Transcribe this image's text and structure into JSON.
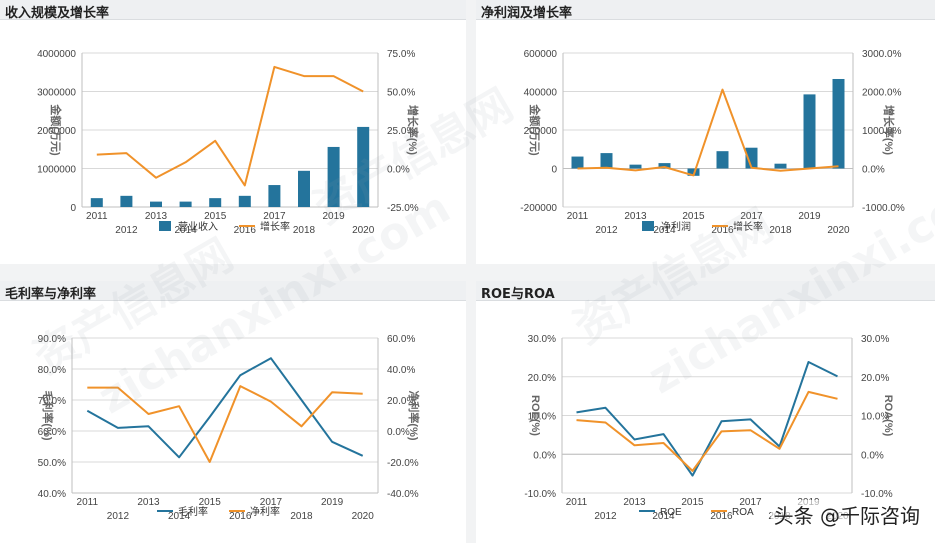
{
  "panels": [
    {
      "title": "收入规模及增长率"
    },
    {
      "title": "净利润及增长率"
    },
    {
      "title": "毛利率与净利率"
    },
    {
      "title": "ROE与ROA"
    }
  ],
  "colors": {
    "blue": "#24749c",
    "orange": "#f0922a",
    "grid": "#d9d9d9",
    "axis_text": "#444444"
  },
  "watermark": {
    "lines": [
      "资产信息网",
      "zichanxinxi.com"
    ]
  },
  "footer_watermark": "头条 @千际咨询",
  "chart_data": [
    {
      "type": "bar+line",
      "title": "收入规模及增长率",
      "categories": [
        "2011",
        "2012",
        "2013",
        "2014",
        "2015",
        "2016",
        "2017",
        "2018",
        "2019",
        "2020"
      ],
      "ylabel": "金额(万元)",
      "y2label": "增长率(%)",
      "ylim": [
        0,
        4000000
      ],
      "yticks": [
        0,
        1000000,
        2000000,
        3000000,
        4000000
      ],
      "ytick_labels": [
        "0",
        "1000000",
        "2000000",
        "3000000",
        "4000000"
      ],
      "y2lim": [
        -25,
        75
      ],
      "y2ticks": [
        -25,
        0,
        25,
        50,
        75
      ],
      "y2tick_labels": [
        "-25.0%",
        "0.0%",
        "25.0%",
        "50.0%",
        "75.0%"
      ],
      "series": [
        {
          "name": "营业收入",
          "kind": "bar",
          "axis": "left",
          "values": [
            230000,
            290000,
            140000,
            140000,
            230000,
            290000,
            570000,
            940000,
            1560000,
            2080000
          ]
        },
        {
          "name": "增长率",
          "kind": "line",
          "axis": "right",
          "values": [
            9,
            10,
            -6,
            4,
            18,
            -11,
            66,
            60,
            60,
            50
          ]
        }
      ],
      "legend": "bottom",
      "grid": true
    },
    {
      "type": "bar+line",
      "title": "净利润及增长率",
      "categories": [
        "2011",
        "2012",
        "2013",
        "2014",
        "2015",
        "2016",
        "2017",
        "2018",
        "2019",
        "2020"
      ],
      "ylabel": "金额(万元)",
      "y2label": "增长率(%)",
      "ylim": [
        -200000,
        600000
      ],
      "yticks": [
        -200000,
        0,
        200000,
        400000,
        600000
      ],
      "ytick_labels": [
        "-200000",
        "0",
        "200000",
        "400000",
        "600000"
      ],
      "y2lim": [
        -1000,
        3000
      ],
      "y2ticks": [
        -1000,
        0,
        1000,
        2000,
        3000
      ],
      "y2tick_labels": [
        "-1000.0%",
        "0.0%",
        "1000.0%",
        "2000.0%",
        "3000.0%"
      ],
      "series": [
        {
          "name": "净利润",
          "kind": "bar",
          "axis": "left",
          "values": [
            62000,
            80000,
            20000,
            28000,
            -38000,
            90000,
            108000,
            25000,
            385000,
            465000
          ]
        },
        {
          "name": "增长率",
          "kind": "line",
          "axis": "right",
          "values": [
            0,
            20,
            -50,
            40,
            -180,
            2050,
            20,
            -60,
            0,
            60
          ]
        }
      ],
      "legend": "bottom",
      "grid": true
    },
    {
      "type": "line",
      "title": "毛利率与净利率",
      "categories": [
        "2011",
        "2012",
        "2013",
        "2014",
        "2015",
        "2016",
        "2017",
        "2018",
        "2019",
        "2020"
      ],
      "ylabel": "毛利率(%)",
      "y2label": "净利率(%)",
      "ylim": [
        40,
        90
      ],
      "yticks": [
        40,
        50,
        60,
        70,
        80,
        90
      ],
      "ytick_labels": [
        "40.0%",
        "50.0%",
        "60.0%",
        "70.0%",
        "80.0%",
        "90.0%"
      ],
      "y2lim": [
        -40,
        60
      ],
      "y2ticks": [
        -40,
        -20,
        0,
        20,
        40,
        60
      ],
      "y2tick_labels": [
        "-40.0%",
        "-20.0%",
        "0.0%",
        "20.0%",
        "40.0%",
        "60.0%"
      ],
      "series": [
        {
          "name": "毛利率",
          "kind": "line",
          "axis": "left",
          "values": [
            66.5,
            61,
            61.5,
            51.5,
            64.5,
            78,
            83.5,
            70,
            56.5,
            52
          ]
        },
        {
          "name": "净利率",
          "kind": "line",
          "axis": "right",
          "values": [
            28,
            28,
            11,
            16,
            -20,
            29,
            19,
            3,
            25,
            24
          ]
        }
      ],
      "legend": "bottom",
      "grid": true
    },
    {
      "type": "line",
      "title": "ROE与ROA",
      "categories": [
        "2011",
        "2012",
        "2013",
        "2014",
        "2015",
        "2016",
        "2017",
        "2018",
        "2019",
        "2020"
      ],
      "ylabel": "ROE(%)",
      "y2label": "ROA(%)",
      "ylim": [
        -10,
        30
      ],
      "yticks": [
        -10,
        0,
        10,
        20,
        30
      ],
      "ytick_labels": [
        "-10.0%",
        "0.0%",
        "10.0%",
        "20.0%",
        "30.0%"
      ],
      "y2lim": [
        -10,
        30
      ],
      "y2ticks": [
        -10,
        0,
        10,
        20,
        30
      ],
      "y2tick_labels": [
        "-10.0%",
        "0.0%",
        "10.0%",
        "20.0%",
        "30.0%"
      ],
      "series": [
        {
          "name": "ROE",
          "kind": "line",
          "axis": "left",
          "values": [
            10.8,
            12,
            3.8,
            5.2,
            -5.5,
            8.5,
            9,
            2,
            23.8,
            20.1
          ]
        },
        {
          "name": "ROA",
          "kind": "line",
          "axis": "right",
          "values": [
            8.8,
            8.2,
            2.3,
            2.9,
            -4.3,
            5.9,
            6.2,
            1.4,
            16.1,
            14.3
          ]
        }
      ],
      "legend": "bottom",
      "grid": true
    }
  ]
}
